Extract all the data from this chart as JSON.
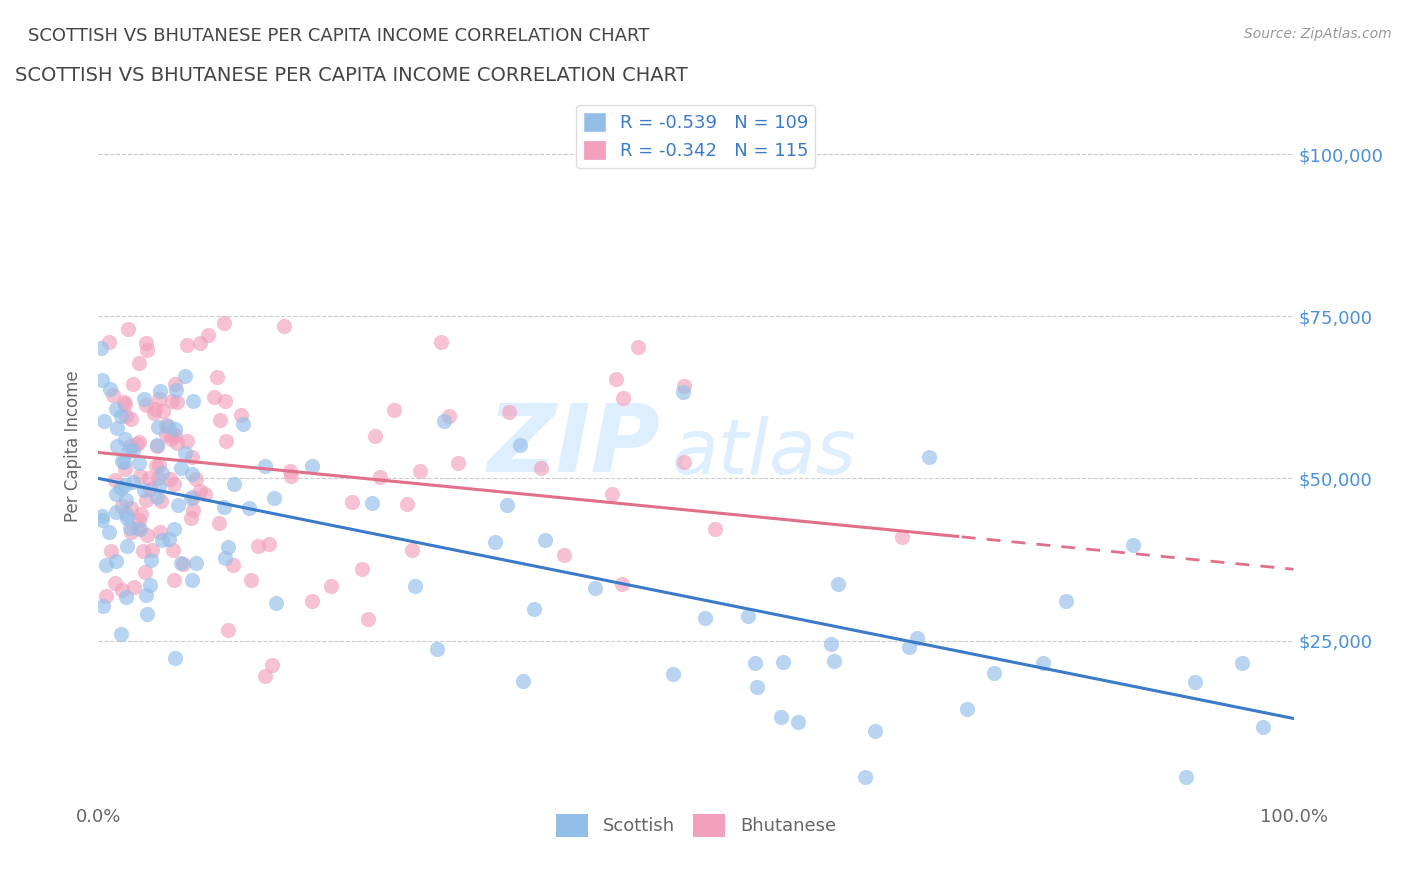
{
  "title": "SCOTTISH VS BHUTANESE PER CAPITA INCOME CORRELATION CHART",
  "source_text": "Source: ZipAtlas.com",
  "ylabel": "Per Capita Income",
  "xlim": [
    0,
    1.0
  ],
  "ylim": [
    0,
    110000
  ],
  "yticks": [
    25000,
    50000,
    75000,
    100000
  ],
  "ytick_labels": [
    "$25,000",
    "$50,000",
    "$75,000",
    "$100,000"
  ],
  "xtick_labels": [
    "0.0%",
    "100.0%"
  ],
  "scottish_color": "#92BEE8",
  "bhutanese_color": "#F2A0BB",
  "scottish_line_color": "#3A7AC8",
  "bhutanese_line_color": "#E0708A",
  "scottish_R": -0.539,
  "scottish_N": 109,
  "bhutanese_R": -0.342,
  "bhutanese_N": 115,
  "background_color": "#FFFFFF",
  "grid_color": "#CCCCCC",
  "title_color": "#444444",
  "axis_label_color": "#666666",
  "ytick_color": "#4A90D9",
  "source_color": "#999999",
  "watermark_ZIP": "ZIP",
  "watermark_atlas": "atlas",
  "watermark_color": "#DDEEFF",
  "legend_text_color": "#3A7AC8",
  "scottish_intercept": 50000,
  "scottish_slope": -37000,
  "bhutanese_intercept": 54000,
  "bhutanese_slope": -18000
}
